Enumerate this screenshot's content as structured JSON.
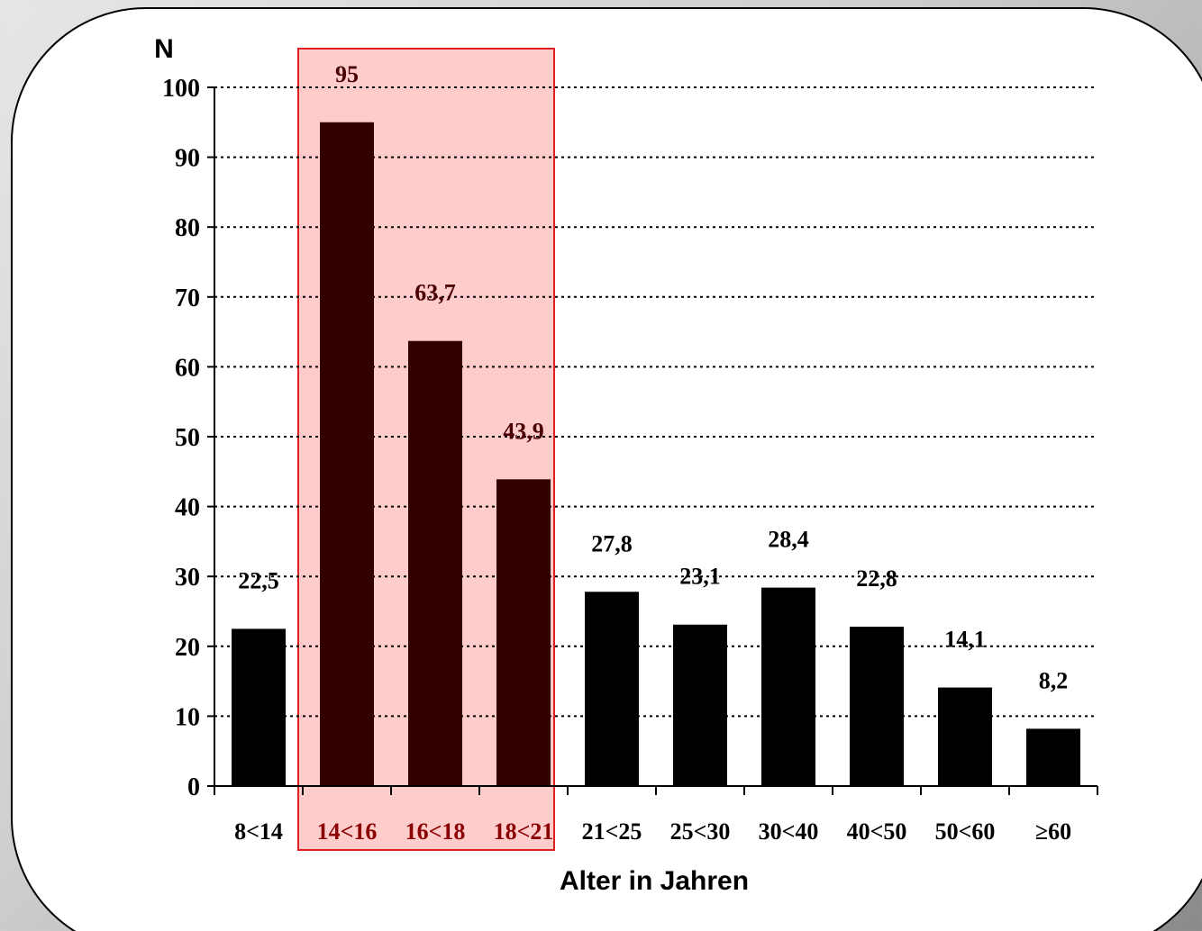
{
  "chart_data": {
    "type": "bar",
    "categories": [
      "8<14",
      "14<16",
      "16<18",
      "18<21",
      "21<25",
      "25<30",
      "30<40",
      "40<50",
      "50<60",
      "≥60"
    ],
    "values": [
      22.5,
      95,
      63.7,
      43.9,
      27.8,
      23.1,
      28.4,
      22.8,
      14.1,
      8.2
    ],
    "value_labels": [
      "22,5",
      "95",
      "63,7",
      "43,9",
      "27,8",
      "23,1",
      "28,4",
      "22,8",
      "14,1",
      "8,2"
    ],
    "highlighted_categories": [
      "14<16",
      "16<18",
      "18<21"
    ],
    "title": "",
    "xlabel": "Alter in Jahren",
    "ylabel": "N",
    "ylim": [
      0,
      100
    ],
    "yticks": [
      0,
      10,
      20,
      30,
      40,
      50,
      60,
      70,
      80,
      90,
      100
    ],
    "grid": "dotted horizontal",
    "legend": "none"
  },
  "colors": {
    "bar_default": "#000000",
    "bar_highlight": "#330000",
    "highlight_fill": "#ffcccc",
    "highlight_border": "#e02020",
    "highlight_label": "#8b0000"
  }
}
